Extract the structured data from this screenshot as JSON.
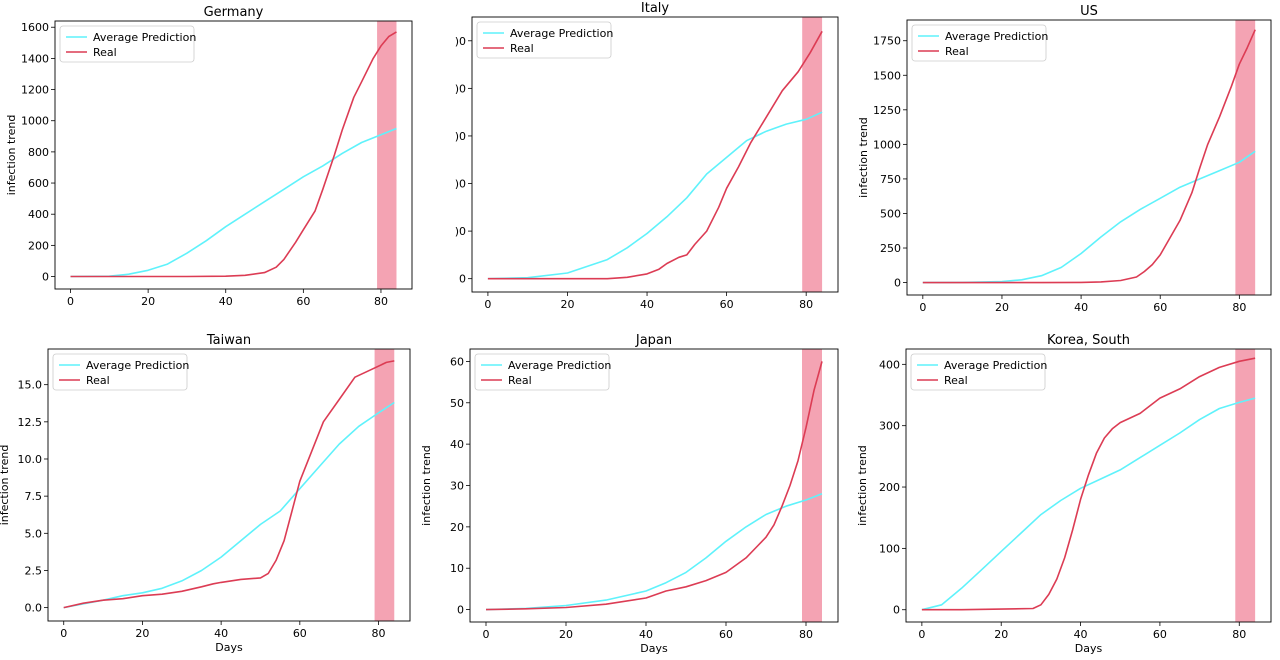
{
  "colors": {
    "prediction": "#5ff2fb",
    "real": "#dc3c54",
    "highlight": "#f4a3b3"
  },
  "chart_data": [
    {
      "type": "line",
      "title": "Germany",
      "xlabel": "",
      "ylabel": "infection trend",
      "xlim": [
        -4,
        88
      ],
      "ylim": [
        -80,
        1640
      ],
      "xticks": [
        0,
        20,
        40,
        60,
        80
      ],
      "xtick_labels": [
        "0",
        "20",
        "40",
        "60",
        "80"
      ],
      "yticks": [
        0,
        200,
        400,
        600,
        800,
        1000,
        1200,
        1400,
        1600
      ],
      "ytick_labels": [
        "0",
        "200",
        "400",
        "600",
        "800",
        "1000",
        "1200",
        "1400",
        "1600"
      ],
      "highlight": [
        79,
        84
      ],
      "legend": "top-left",
      "series": [
        {
          "name": "Average Prediction",
          "key": "prediction",
          "x": [
            0,
            10,
            15,
            20,
            25,
            30,
            35,
            40,
            45,
            50,
            55,
            60,
            65,
            70,
            75,
            80,
            84
          ],
          "y": [
            0,
            2,
            15,
            40,
            80,
            150,
            230,
            320,
            400,
            480,
            560,
            640,
            710,
            790,
            860,
            910,
            950
          ]
        },
        {
          "name": "Real",
          "key": "real",
          "x": [
            0,
            10,
            20,
            30,
            40,
            45,
            50,
            53,
            55,
            58,
            60,
            63,
            65,
            68,
            70,
            73,
            75,
            78,
            80,
            82,
            84
          ],
          "y": [
            0,
            0,
            0,
            0,
            2,
            8,
            25,
            60,
            110,
            220,
            300,
            420,
            560,
            780,
            940,
            1150,
            1250,
            1400,
            1480,
            1540,
            1570
          ]
        }
      ]
    },
    {
      "type": "line",
      "title": "Italy",
      "xlabel": "",
      "ylabel": "",
      "xlim": [
        -4,
        88
      ],
      "ylim": [
        -0.28,
        5.5
      ],
      "xticks": [
        0,
        20,
        40,
        60,
        80
      ],
      "xtick_labels": [
        "0",
        "20",
        "40",
        "60",
        "80"
      ],
      "yticks": [
        0,
        1,
        2,
        3,
        4,
        5
      ],
      "ytick_labels": [
        "0",
        ")0",
        ")0",
        ")0",
        ")0",
        ")0"
      ],
      "highlight": [
        79,
        84
      ],
      "legend": "top-left",
      "series": [
        {
          "name": "Average Prediction",
          "key": "prediction",
          "x": [
            0,
            10,
            20,
            30,
            35,
            40,
            45,
            50,
            55,
            60,
            65,
            70,
            75,
            80,
            84
          ],
          "y": [
            0,
            0.02,
            0.12,
            0.4,
            0.65,
            0.95,
            1.3,
            1.7,
            2.2,
            2.55,
            2.9,
            3.1,
            3.25,
            3.35,
            3.5
          ]
        },
        {
          "name": "Real",
          "key": "real",
          "x": [
            0,
            10,
            20,
            30,
            35,
            40,
            43,
            45,
            48,
            50,
            52,
            55,
            58,
            60,
            63,
            66,
            70,
            74,
            78,
            81,
            84
          ],
          "y": [
            0,
            0,
            0,
            0,
            0.03,
            0.1,
            0.2,
            0.32,
            0.45,
            0.5,
            0.72,
            1.0,
            1.5,
            1.9,
            2.35,
            2.85,
            3.4,
            3.95,
            4.35,
            4.75,
            5.2
          ]
        }
      ]
    },
    {
      "type": "line",
      "title": "US",
      "xlabel": "",
      "ylabel": "infection trend",
      "xlim": [
        -4,
        88
      ],
      "ylim": [
        -90,
        1900
      ],
      "xticks": [
        0,
        20,
        40,
        60,
        80
      ],
      "xtick_labels": [
        "0",
        "20",
        "40",
        "60",
        "80"
      ],
      "yticks": [
        0,
        250,
        500,
        750,
        1000,
        1250,
        1500,
        1750
      ],
      "ytick_labels": [
        "0",
        "250",
        "500",
        "750",
        "1000",
        "1250",
        "1500",
        "1750"
      ],
      "highlight": [
        79,
        84
      ],
      "legend": "top-left",
      "series": [
        {
          "name": "Average Prediction",
          "key": "prediction",
          "x": [
            0,
            10,
            20,
            25,
            30,
            35,
            40,
            45,
            50,
            55,
            60,
            65,
            70,
            75,
            80,
            84
          ],
          "y": [
            0,
            1,
            8,
            20,
            50,
            110,
            210,
            330,
            440,
            530,
            610,
            690,
            750,
            810,
            870,
            950
          ]
        },
        {
          "name": "Real",
          "key": "real",
          "x": [
            0,
            20,
            30,
            40,
            45,
            50,
            54,
            56,
            58,
            60,
            62,
            65,
            68,
            70,
            72,
            75,
            78,
            80,
            82,
            84
          ],
          "y": [
            0,
            0,
            0,
            1,
            5,
            15,
            40,
            80,
            130,
            200,
            300,
            450,
            650,
            830,
            1000,
            1200,
            1420,
            1580,
            1700,
            1830
          ]
        }
      ]
    },
    {
      "type": "line",
      "title": "Taiwan",
      "xlabel": "Days",
      "ylabel": "infection trend",
      "xlim": [
        -4,
        88
      ],
      "ylim": [
        -0.9,
        17.4
      ],
      "xticks": [
        0,
        20,
        40,
        60,
        80
      ],
      "xtick_labels": [
        "0",
        "20",
        "40",
        "60",
        "80"
      ],
      "yticks": [
        0,
        2.5,
        5,
        7.5,
        10,
        12.5,
        15
      ],
      "ytick_labels": [
        "0.0",
        "2.5",
        "5.0",
        "7.5",
        "10.0",
        "12.5",
        "15.0"
      ],
      "highlight": [
        79,
        84
      ],
      "legend": "top-left",
      "series": [
        {
          "name": "Average Prediction",
          "key": "prediction",
          "x": [
            0,
            5,
            10,
            15,
            20,
            25,
            30,
            35,
            40,
            45,
            50,
            55,
            60,
            65,
            70,
            75,
            80,
            84
          ],
          "y": [
            0,
            0.25,
            0.5,
            0.8,
            1.0,
            1.3,
            1.8,
            2.5,
            3.4,
            4.5,
            5.6,
            6.5,
            8.0,
            9.5,
            11.0,
            12.2,
            13.1,
            13.8
          ]
        },
        {
          "name": "Real",
          "key": "real",
          "x": [
            0,
            5,
            10,
            15,
            20,
            25,
            30,
            35,
            38,
            40,
            45,
            50,
            52,
            54,
            56,
            58,
            60,
            63,
            66,
            70,
            74,
            78,
            82,
            84
          ],
          "y": [
            0,
            0.3,
            0.5,
            0.6,
            0.8,
            0.9,
            1.1,
            1.4,
            1.6,
            1.7,
            1.9,
            2.0,
            2.3,
            3.2,
            4.5,
            6.5,
            8.5,
            10.5,
            12.5,
            14.0,
            15.5,
            16.0,
            16.5,
            16.6
          ]
        }
      ]
    },
    {
      "type": "line",
      "title": "Japan",
      "xlabel": "Days",
      "ylabel": "infection trend",
      "xlim": [
        -4,
        88
      ],
      "ylim": [
        -3,
        63
      ],
      "xticks": [
        0,
        20,
        40,
        60,
        80
      ],
      "xtick_labels": [
        "0",
        "20",
        "40",
        "60",
        "80"
      ],
      "yticks": [
        0,
        10,
        20,
        30,
        40,
        50,
        60
      ],
      "ytick_labels": [
        "0",
        "10",
        "20",
        "30",
        "40",
        "50",
        "60"
      ],
      "highlight": [
        79,
        84
      ],
      "legend": "top-left",
      "series": [
        {
          "name": "Average Prediction",
          "key": "prediction",
          "x": [
            0,
            10,
            20,
            30,
            40,
            45,
            50,
            55,
            60,
            65,
            70,
            75,
            80,
            84
          ],
          "y": [
            0,
            0.3,
            1.0,
            2.3,
            4.5,
            6.5,
            9.0,
            12.5,
            16.5,
            20.0,
            23.0,
            25.0,
            26.5,
            28.0
          ]
        },
        {
          "name": "Real",
          "key": "real",
          "x": [
            0,
            10,
            20,
            30,
            40,
            45,
            50,
            55,
            60,
            65,
            68,
            70,
            72,
            74,
            76,
            78,
            80,
            82,
            84
          ],
          "y": [
            0,
            0.2,
            0.5,
            1.3,
            2.8,
            4.5,
            5.5,
            7.0,
            9.0,
            12.5,
            15.5,
            17.5,
            20.5,
            25.0,
            30.0,
            36.0,
            44.0,
            53.0,
            60.0
          ]
        }
      ]
    },
    {
      "type": "line",
      "title": "Korea, South",
      "xlabel": "Days",
      "ylabel": "infection trend",
      "xlim": [
        -4,
        88
      ],
      "ylim": [
        -20,
        425
      ],
      "xticks": [
        0,
        20,
        40,
        60,
        80
      ],
      "xtick_labels": [
        "0",
        "20",
        "40",
        "60",
        "80"
      ],
      "yticks": [
        0,
        100,
        200,
        300,
        400
      ],
      "ytick_labels": [
        "0",
        "100",
        "200",
        "300",
        "400"
      ],
      "highlight": [
        79,
        84
      ],
      "legend": "top-left",
      "series": [
        {
          "name": "Average Prediction",
          "key": "prediction",
          "x": [
            0,
            5,
            10,
            15,
            20,
            25,
            30,
            35,
            40,
            45,
            50,
            55,
            60,
            65,
            70,
            75,
            80,
            84
          ],
          "y": [
            0,
            8,
            35,
            65,
            95,
            125,
            155,
            178,
            198,
            213,
            228,
            248,
            268,
            288,
            310,
            328,
            338,
            345
          ]
        },
        {
          "name": "Real",
          "key": "real",
          "x": [
            0,
            10,
            20,
            28,
            30,
            32,
            34,
            36,
            38,
            40,
            42,
            44,
            46,
            48,
            50,
            55,
            60,
            65,
            70,
            75,
            80,
            84
          ],
          "y": [
            0,
            0,
            1,
            2,
            8,
            25,
            50,
            85,
            130,
            180,
            220,
            255,
            280,
            295,
            305,
            320,
            345,
            360,
            380,
            395,
            405,
            410
          ]
        }
      ]
    }
  ]
}
